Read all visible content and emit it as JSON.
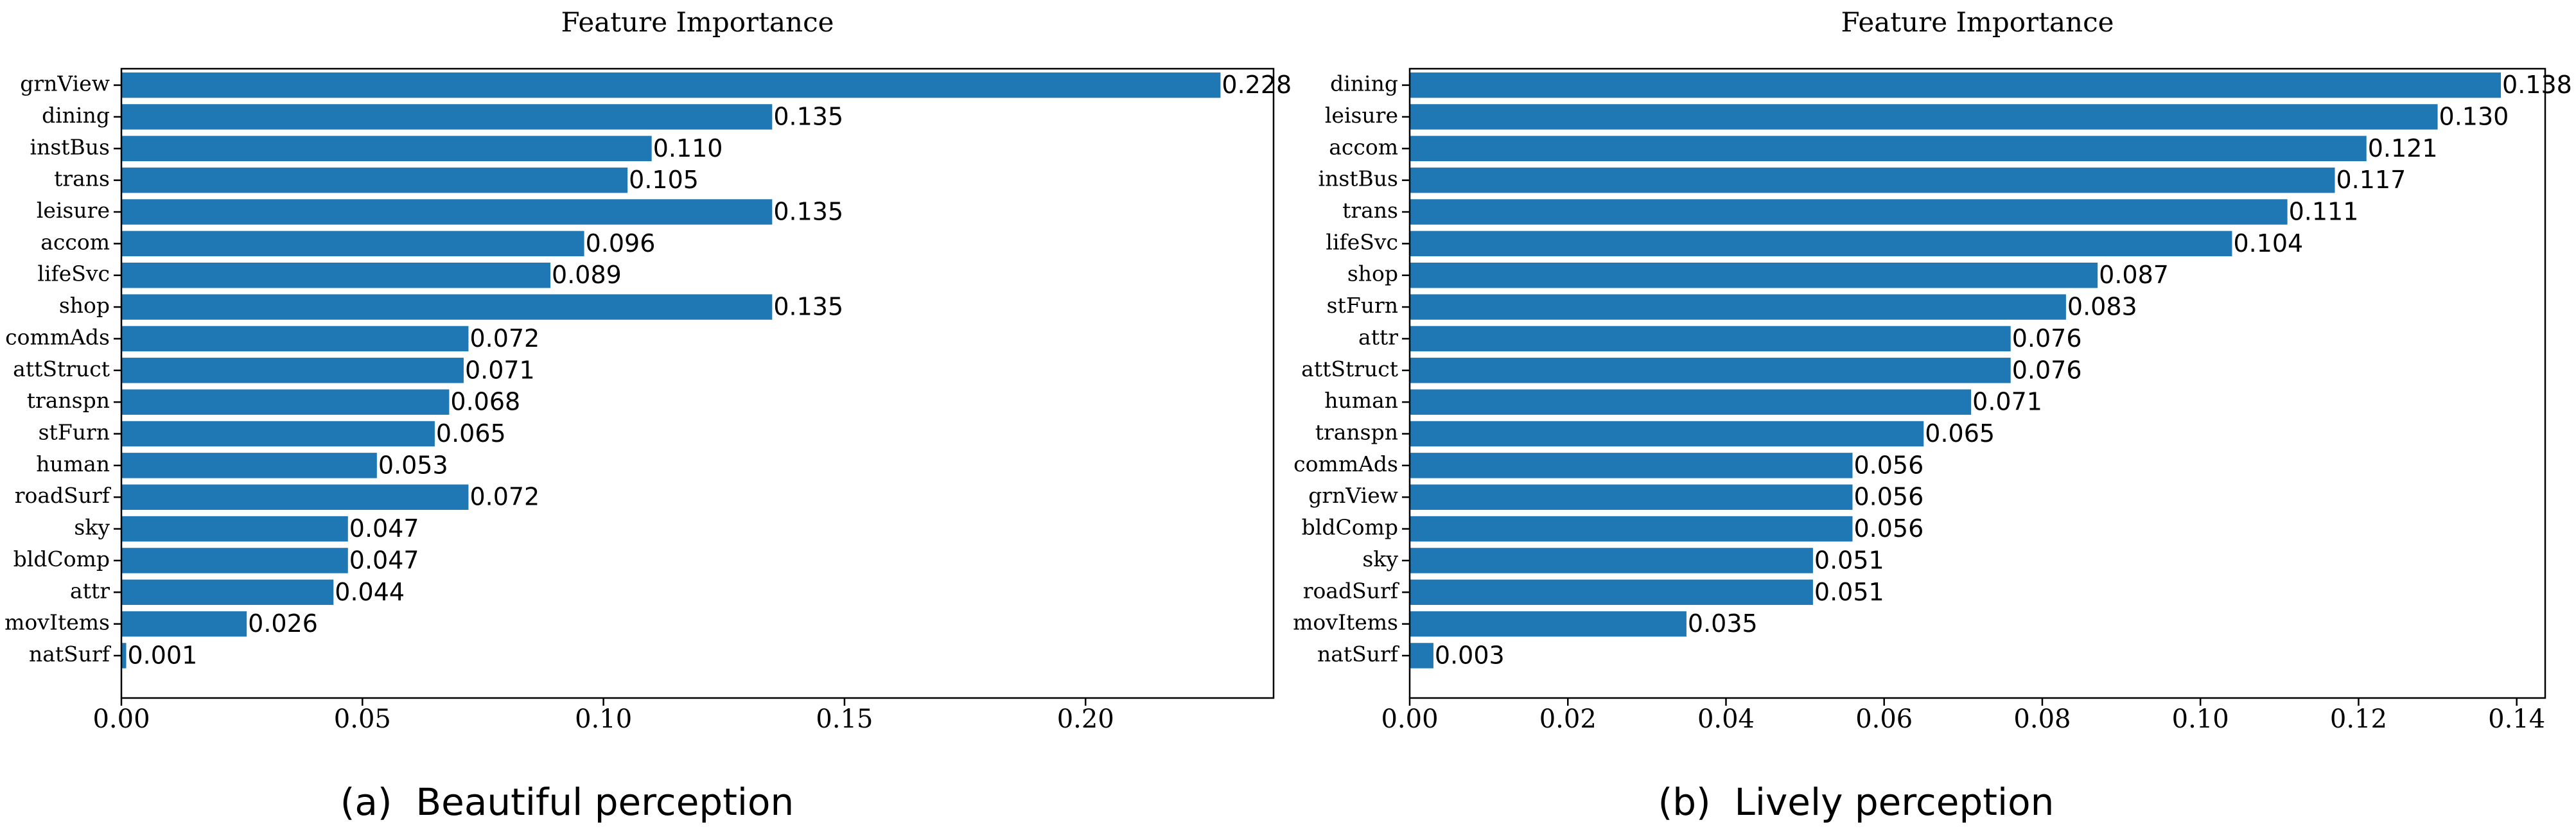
{
  "chart_data": [
    {
      "type": "barh",
      "title": "Feature Importance",
      "caption": "(a)  Beautiful perception",
      "categories": [
        "grnView",
        "dining",
        "instBus",
        "trans",
        "leisure",
        "accom",
        "lifeSvc",
        "shop",
        "commAds",
        "attStruct",
        "transpn",
        "stFurn",
        "human",
        "roadSurf",
        "sky",
        "bldComp",
        "attr",
        "movItems",
        "natSurf"
      ],
      "values": [
        0.228,
        0.135,
        0.11,
        0.105,
        0.135,
        0.096,
        0.089,
        0.135,
        0.072,
        0.071,
        0.068,
        0.065,
        0.053,
        0.072,
        0.047,
        0.047,
        0.044,
        0.026,
        0.001
      ],
      "value_labels": [
        "0.228",
        "0.135",
        "0.110",
        "0.105",
        "0.135",
        "0.096",
        "0.089",
        "0.135",
        "0.072",
        "0.071",
        "0.068",
        "0.065",
        "0.053",
        "0.072",
        "0.047",
        "0.047",
        "0.044",
        "0.026",
        "0.001"
      ],
      "color": "#1f77b4",
      "xlim": [
        0,
        0.239
      ],
      "xticks": [
        {
          "value": 0,
          "label": "0.00"
        },
        0.05,
        {
          "value": 0.1,
          "label": "0.10"
        },
        0.15,
        {
          "value": 0.2,
          "label": "0.20"
        }
      ]
    },
    {
      "type": "barh",
      "title": "Feature Importance",
      "caption": "(b)  Lively perception",
      "categories": [
        "dining",
        "leisure",
        "accom",
        "instBus",
        "trans",
        "lifeSvc",
        "shop",
        "stFurn",
        "attr",
        "attStruct",
        "human",
        "transpn",
        "commAds",
        "grnView",
        "bldComp",
        "sky",
        "roadSurf",
        "movItems",
        "natSurf"
      ],
      "values": [
        0.138,
        0.13,
        0.121,
        0.117,
        0.111,
        0.104,
        0.087,
        0.083,
        0.076,
        0.076,
        0.071,
        0.065,
        0.056,
        0.056,
        0.056,
        0.051,
        0.051,
        0.035,
        0.003
      ],
      "value_labels": [
        "0.138",
        "0.130",
        "0.121",
        "0.117",
        "0.111",
        "0.104",
        "0.087",
        "0.083",
        "0.076",
        "0.076",
        "0.071",
        "0.065",
        "0.056",
        "0.056",
        "0.056",
        "0.051",
        "0.051",
        "0.035",
        "0.003"
      ],
      "color": "#1f77b4",
      "xlim": [
        0,
        0.1436
      ],
      "xticks": [
        {
          "value": 0,
          "label": "0.00"
        },
        0.02,
        0.04,
        0.06,
        0.08,
        {
          "value": 0.1,
          "label": "0.10"
        },
        0.12,
        0.14
      ]
    }
  ]
}
